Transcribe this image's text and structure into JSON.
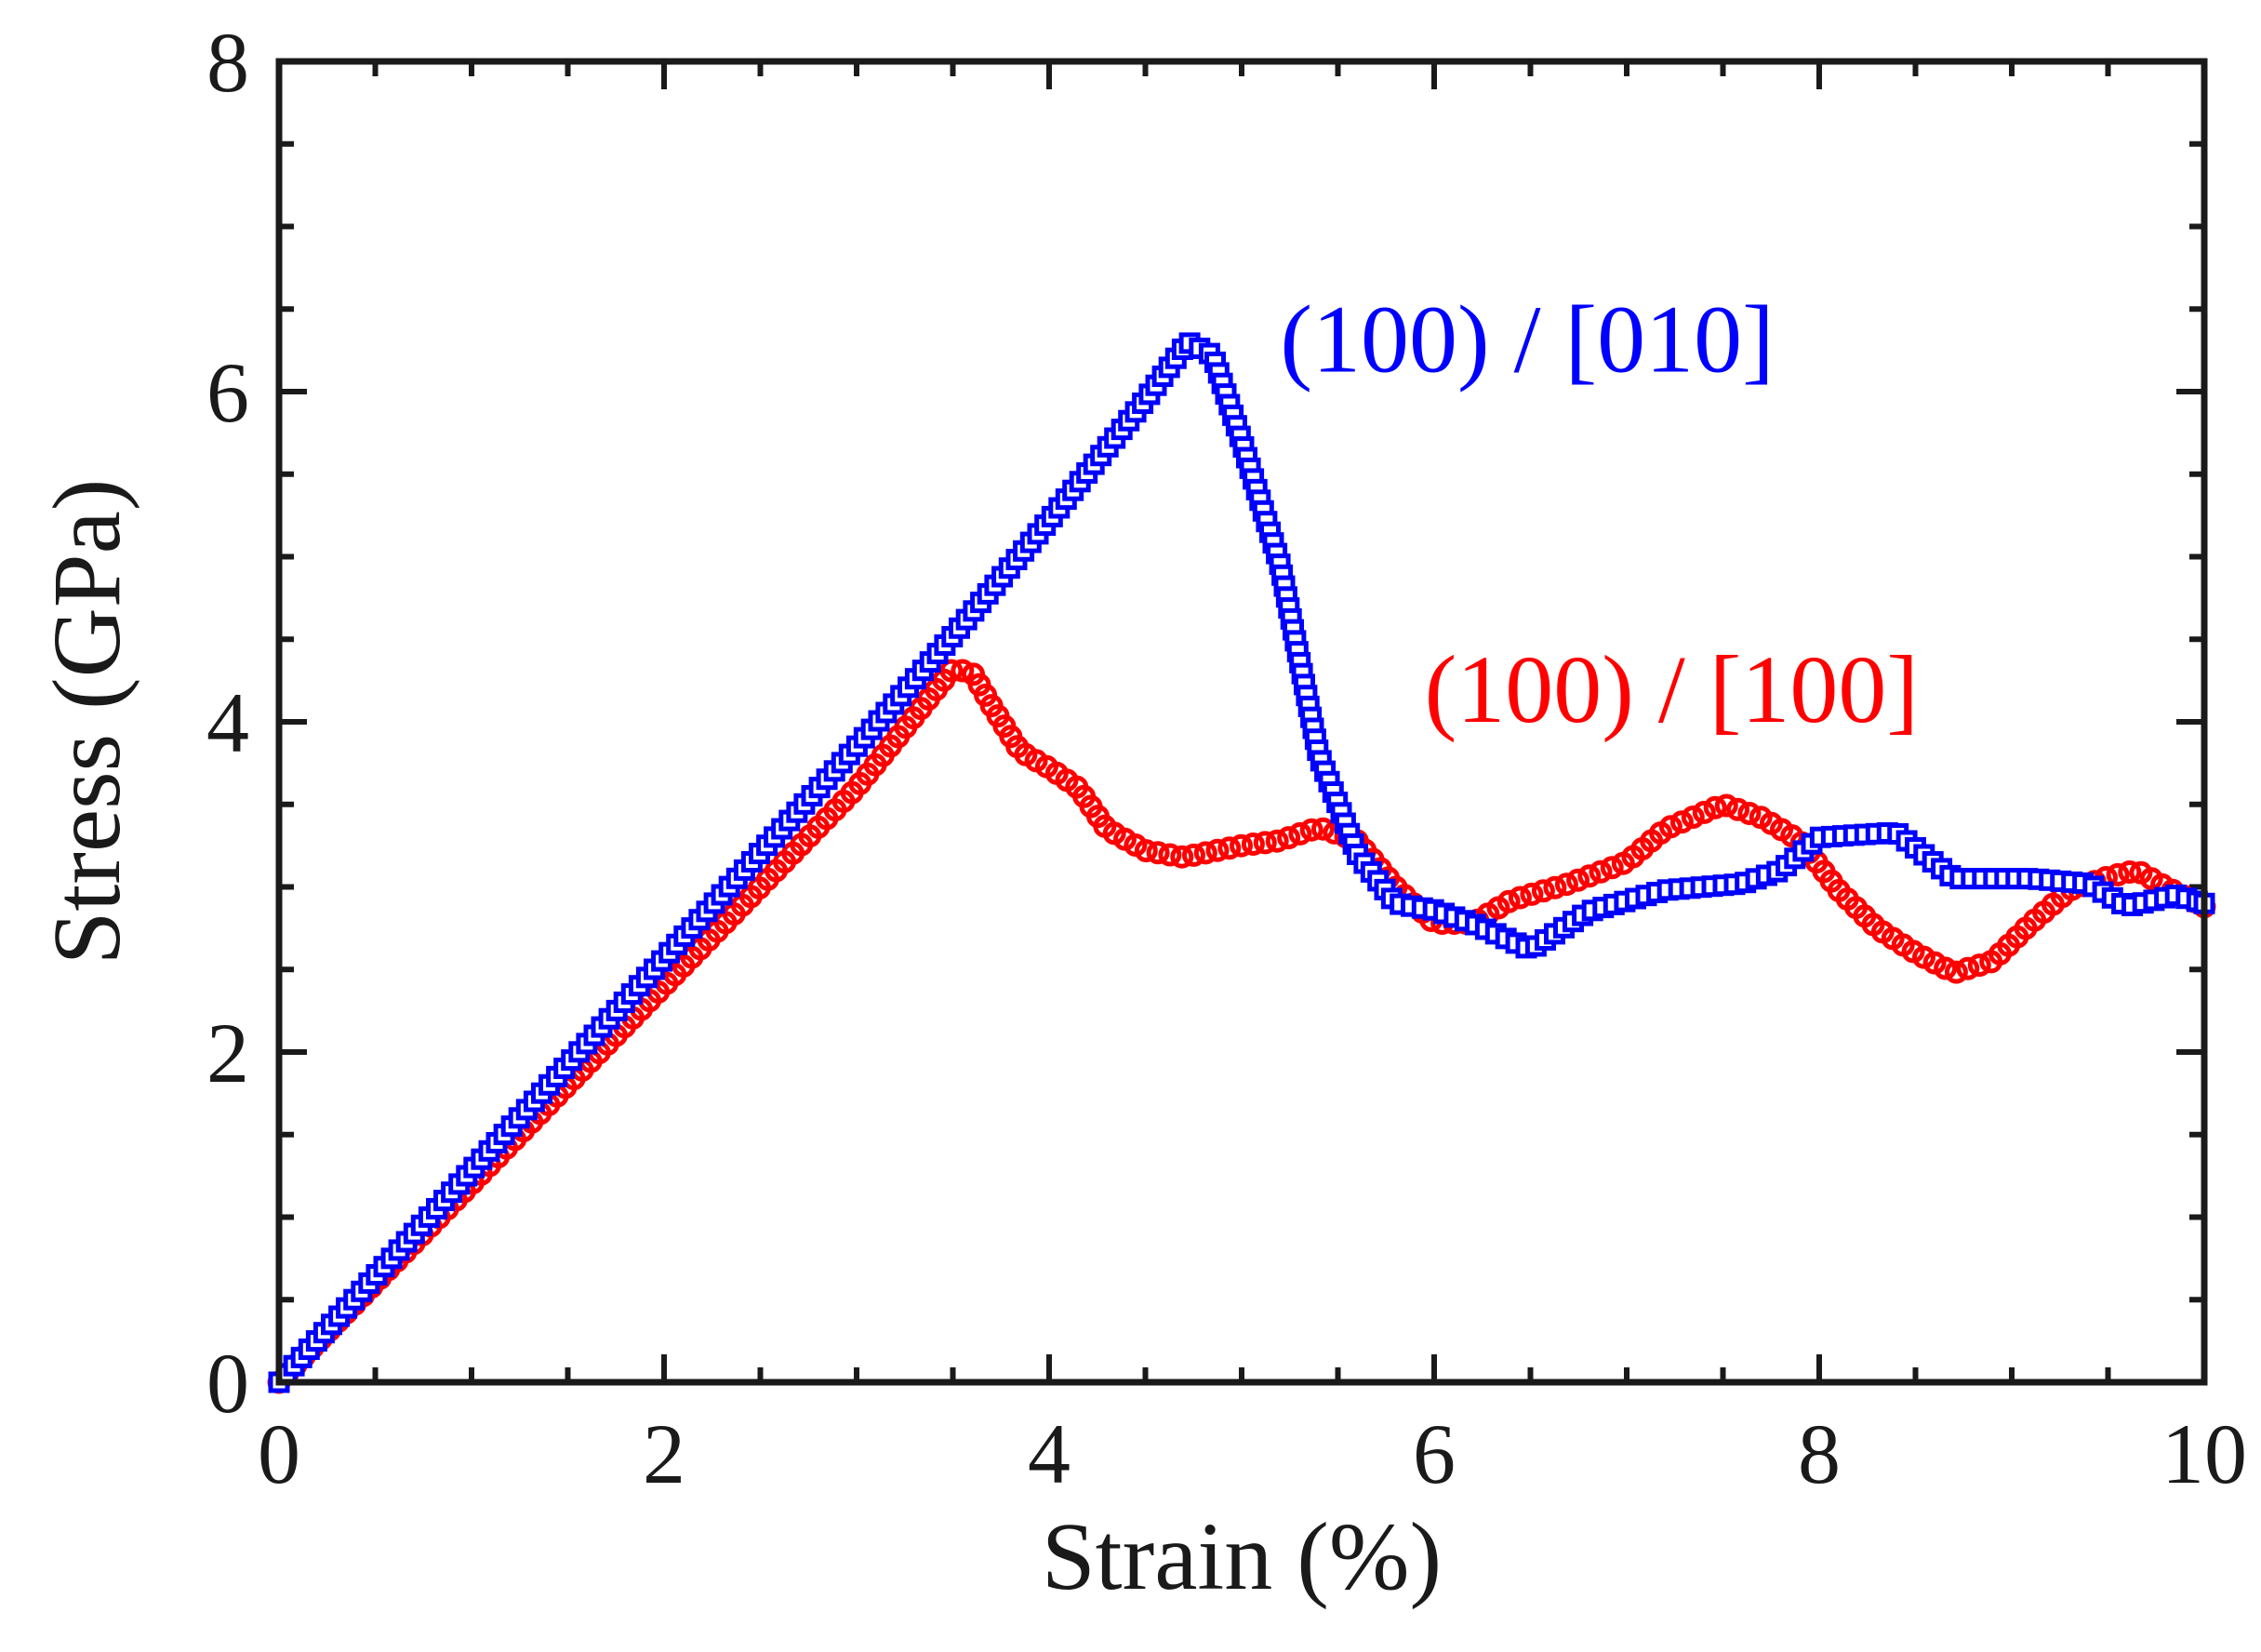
{
  "chart_data": {
    "type": "scatter",
    "title": "",
    "xlabel": "Strain (%)",
    "ylabel": "Stress (GPa)",
    "xlim": [
      0,
      10
    ],
    "ylim": [
      0,
      8
    ],
    "xticks": [
      0,
      2,
      4,
      6,
      8,
      10
    ],
    "yticks": [
      0,
      2,
      4,
      6,
      8
    ],
    "xtick_labels": [
      "0",
      "2",
      "4",
      "6",
      "8",
      "10"
    ],
    "ytick_labels": [
      "0",
      "2",
      "4",
      "6",
      "8"
    ],
    "grid": false,
    "legend": "inline",
    "series": [
      {
        "name": "(100) / [100]",
        "color": "#ff0000",
        "marker": "circle",
        "keypoints": [
          [
            0,
            0
          ],
          [
            3.0,
            3.6
          ],
          [
            3.5,
            4.32
          ],
          [
            3.6,
            4.3
          ],
          [
            3.7,
            4.1
          ],
          [
            3.85,
            3.82
          ],
          [
            4.0,
            3.72
          ],
          [
            4.15,
            3.6
          ],
          [
            4.3,
            3.35
          ],
          [
            4.5,
            3.22
          ],
          [
            4.7,
            3.18
          ],
          [
            5.0,
            3.25
          ],
          [
            5.2,
            3.28
          ],
          [
            5.4,
            3.36
          ],
          [
            5.6,
            3.28
          ],
          [
            5.8,
            3.0
          ],
          [
            6.0,
            2.78
          ],
          [
            6.2,
            2.78
          ],
          [
            6.4,
            2.92
          ],
          [
            6.7,
            3.02
          ],
          [
            7.0,
            3.15
          ],
          [
            7.2,
            3.35
          ],
          [
            7.5,
            3.5
          ],
          [
            7.7,
            3.42
          ],
          [
            7.9,
            3.28
          ],
          [
            8.1,
            2.98
          ],
          [
            8.3,
            2.75
          ],
          [
            8.5,
            2.6
          ],
          [
            8.7,
            2.48
          ],
          [
            8.9,
            2.55
          ],
          [
            9.1,
            2.78
          ],
          [
            9.3,
            2.98
          ],
          [
            9.5,
            3.06
          ],
          [
            9.65,
            3.1
          ],
          [
            9.8,
            3.0
          ],
          [
            10.0,
            2.88
          ]
        ]
      },
      {
        "name": "(100) / [010]",
        "color": "#0000ff",
        "marker": "square",
        "keypoints": [
          [
            0,
            0
          ],
          [
            3.0,
            3.85
          ],
          [
            3.5,
            4.52
          ],
          [
            4.0,
            5.22
          ],
          [
            4.5,
            5.95
          ],
          [
            4.72,
            6.3
          ],
          [
            4.85,
            6.22
          ],
          [
            5.0,
            5.7
          ],
          [
            5.2,
            4.95
          ],
          [
            5.4,
            3.8
          ],
          [
            5.6,
            3.2
          ],
          [
            5.8,
            2.9
          ],
          [
            6.0,
            2.86
          ],
          [
            6.2,
            2.78
          ],
          [
            6.5,
            2.62
          ],
          [
            6.8,
            2.85
          ],
          [
            7.2,
            2.98
          ],
          [
            7.6,
            3.02
          ],
          [
            7.8,
            3.1
          ],
          [
            8.0,
            3.3
          ],
          [
            8.4,
            3.33
          ],
          [
            8.7,
            3.05
          ],
          [
            9.1,
            3.05
          ],
          [
            9.4,
            3.02
          ],
          [
            9.6,
            2.88
          ],
          [
            9.85,
            2.95
          ],
          [
            10.0,
            2.9
          ]
        ]
      }
    ],
    "annotations": [
      {
        "text": "(100) / [010]",
        "x": 5.2,
        "y": 6.12,
        "color": "#0000ff"
      },
      {
        "text": "(100) / [100]",
        "x": 5.95,
        "y": 4.0,
        "color": "#ff0000"
      }
    ]
  }
}
